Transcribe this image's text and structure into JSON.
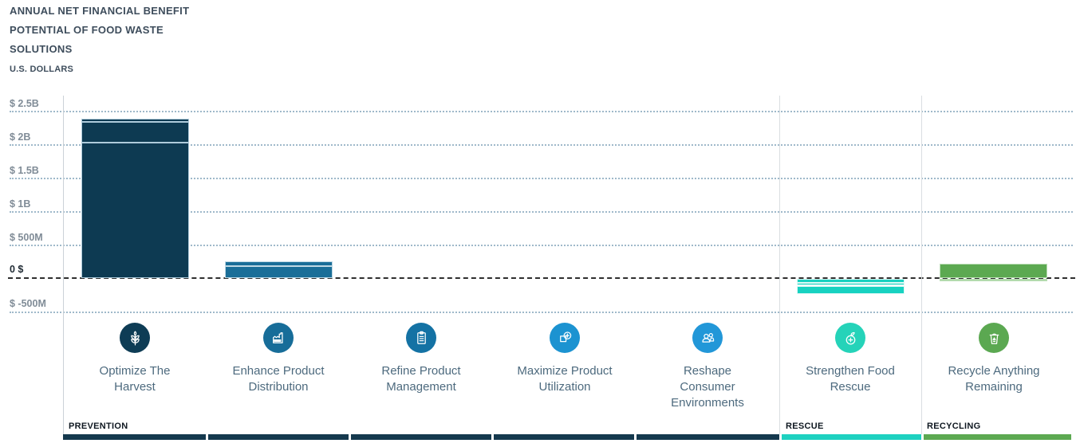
{
  "header": {
    "title_lines": [
      "ANNUAL NET FINANCIAL BENEFIT",
      "POTENTIAL OF FOOD WASTE",
      "SOLUTIONS"
    ],
    "subtitle": "U.S. DOLLARS"
  },
  "y_axis": {
    "ticks": [
      {
        "label": "$ 2.5B",
        "value_m": 2500
      },
      {
        "label": "$ 2B",
        "value_m": 2000
      },
      {
        "label": "$ 1.5B",
        "value_m": 1500
      },
      {
        "label": "$ 1B",
        "value_m": 1000
      },
      {
        "label": "$ 500M",
        "value_m": 500
      },
      {
        "label": "0 $",
        "value_m": 0
      },
      {
        "label": "$ -500M",
        "value_m": -500
      }
    ]
  },
  "groups": [
    {
      "label": "PREVENTION",
      "color": "#15394E"
    },
    {
      "label": "RESCUE",
      "color": "#1ED1C0"
    },
    {
      "label": "RECYCLING",
      "color": "#5CA951"
    }
  ],
  "categories": [
    {
      "label": "Optimize The\nHarvest",
      "icon": "wheat-icon",
      "group": 0,
      "circle_color": "#0E3C55",
      "bar_color": "#0D3A52",
      "border_color": "#AECBDB",
      "segments": [
        {
          "v": 2035
        },
        {
          "v": 310
        },
        {
          "v": 50
        }
      ]
    },
    {
      "label": "Enhance Product\nDistribution",
      "icon": "factory-icon",
      "group": 0,
      "circle_color": "#176D99",
      "bar_color": "#1A6E98",
      "border_color": "#BFD8E4",
      "segments": [
        {
          "v": 190
        },
        {
          "v": 70
        }
      ]
    },
    {
      "label": "Refine Product\nManagement",
      "icon": "clipboard-icon",
      "group": 0,
      "circle_color": "#1472A4",
      "bar_color": "#1472A4",
      "border_color": "#BFD8E4",
      "segments": []
    },
    {
      "label": "Maximize Product\nUtilization",
      "icon": "square-plus-icon",
      "group": 0,
      "circle_color": "#1C93D1",
      "bar_color": "#1C93D1",
      "border_color": "#BFD8E4",
      "segments": []
    },
    {
      "label": "Reshape\nConsumer\nEnvironments",
      "icon": "people-icon",
      "group": 0,
      "circle_color": "#2297D8",
      "bar_color": "#2297D8",
      "border_color": "#BFD8E4",
      "segments": []
    },
    {
      "label": "Strengthen Food\nRescue",
      "icon": "fruit-plus-icon",
      "group": 1,
      "circle_color": "#25D3B9",
      "bar_color": "#17D2C1",
      "border_color": "#DFF8F5",
      "segments": [
        {
          "v": -60
        },
        {
          "v": -45
        },
        {
          "v": -130
        }
      ]
    },
    {
      "label": "Recycle Anything\nRemaining",
      "icon": "recycle-bin-icon",
      "group": 2,
      "circle_color": "#5BA851",
      "bar_color": "#5CA951",
      "border_color": "#B9DDB4",
      "segments": [
        {
          "v": 225
        },
        {
          "v": -45,
          "color": "#ACD8A5"
        }
      ]
    }
  ],
  "chart_data": {
    "type": "bar",
    "stacked": true,
    "title": "Annual Net Financial Benefit Potential of Food Waste Solutions",
    "ylabel": "U.S. Dollars",
    "unit": "USD millions",
    "categories": [
      "Optimize The Harvest",
      "Enhance Product Distribution",
      "Refine Product Management",
      "Maximize Product Utilization",
      "Reshape Consumer Environments",
      "Strengthen Food Rescue",
      "Recycle Anything Remaining"
    ],
    "category_groups": [
      "Prevention",
      "Prevention",
      "Prevention",
      "Prevention",
      "Prevention",
      "Rescue",
      "Recycling"
    ],
    "segments_m": [
      [
        2035,
        310,
        50
      ],
      [
        190,
        70
      ],
      [],
      [],
      [],
      [
        -60,
        -45,
        -130
      ],
      [
        225,
        -45
      ]
    ],
    "values_total_m": [
      2395,
      260,
      0,
      0,
      0,
      -235,
      180
    ],
    "ylim_m": [
      -500,
      2500
    ],
    "yticks_m": [
      2500,
      2000,
      1500,
      1000,
      500,
      0,
      -500
    ],
    "grid": "horizontal dotted",
    "zero_line": "dashed",
    "legend_position": "none"
  }
}
